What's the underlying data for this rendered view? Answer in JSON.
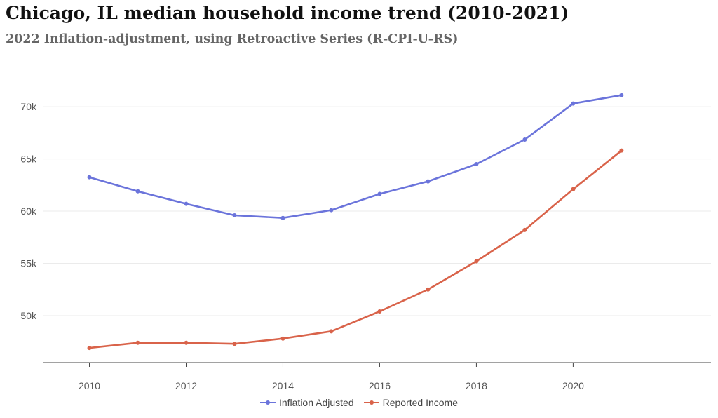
{
  "title": "Chicago, IL median household income trend (2010-2021)",
  "subtitle": "2022 Inflation-adjustment, using Retroactive Series (R-CPI-U-RS)",
  "chart_data": {
    "type": "line",
    "x": [
      2010,
      2011,
      2012,
      2013,
      2014,
      2015,
      2016,
      2017,
      2018,
      2019,
      2020,
      2021
    ],
    "x_ticks": [
      "2010",
      "2012",
      "2014",
      "2016",
      "2018",
      "2020"
    ],
    "y_ticks": [
      "50k",
      "55k",
      "60k",
      "65k",
      "70k"
    ],
    "ylim": [
      45500,
      73500
    ],
    "xlim": [
      2009.05,
      2022.85
    ],
    "grid": true,
    "legend_position": "bottom-center",
    "series": [
      {
        "name": "Inflation Adjusted",
        "color": "#6b74db",
        "values": [
          63250,
          61900,
          60700,
          59600,
          59350,
          60100,
          61650,
          62850,
          64500,
          66850,
          70300,
          71100
        ]
      },
      {
        "name": "Reported Income",
        "color": "#d9634a",
        "values": [
          46900,
          47400,
          47400,
          47300,
          47800,
          48500,
          50400,
          52500,
          55200,
          58200,
          62100,
          65800
        ]
      }
    ]
  }
}
